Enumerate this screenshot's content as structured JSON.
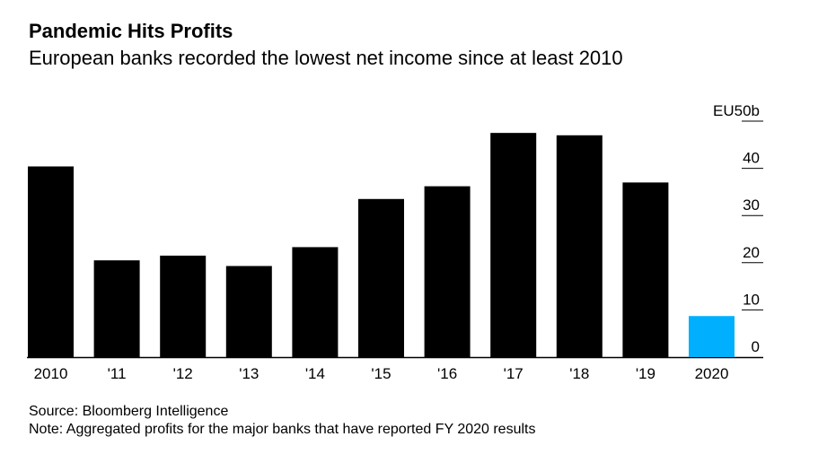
{
  "chart_data": {
    "type": "bar",
    "title": "Pandemic Hits Profits",
    "subtitle": "European banks recorded the lowest net income since at least 2010",
    "categories": [
      "2010",
      "'11",
      "'12",
      "'13",
      "'14",
      "'15",
      "'16",
      "'17",
      "'18",
      "'19",
      "2020"
    ],
    "values": [
      40.4,
      20.5,
      21.5,
      19.3,
      23.3,
      33.5,
      36.2,
      47.5,
      47.0,
      37.0,
      8.7
    ],
    "highlight_index": 10,
    "colors": {
      "bar": "#000000",
      "highlight": "#00b0ff",
      "grid": "#000000"
    },
    "ylim": [
      0,
      50
    ],
    "y_ticks": [
      0,
      10,
      20,
      30,
      40,
      50
    ],
    "y_tick_labels": [
      "0",
      "10",
      "20",
      "30",
      "40",
      "EU50b"
    ],
    "y_axis_side": "right",
    "xlabel": "",
    "ylabel": ""
  },
  "footer": {
    "source": "Source: Bloomberg Intelligence",
    "note": "Note: Aggregated profits for the major banks that have reported FY 2020 results"
  }
}
